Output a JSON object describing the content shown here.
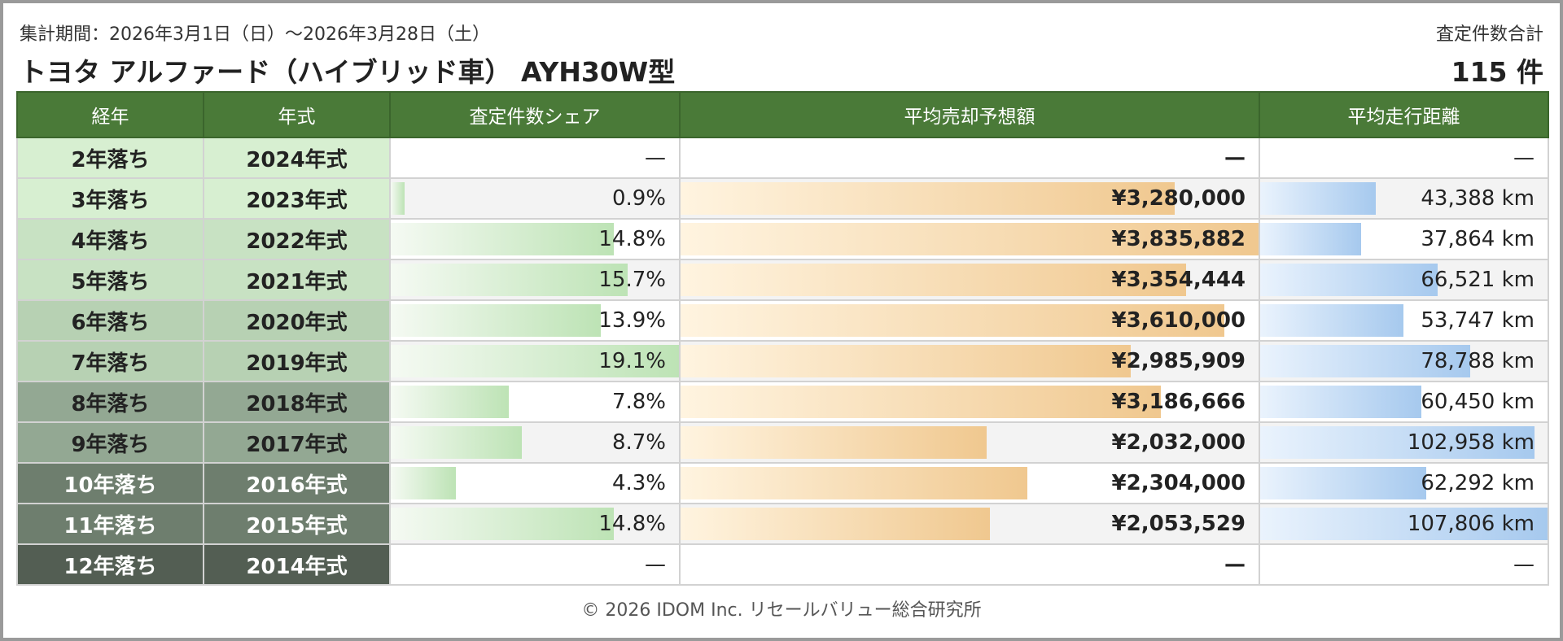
{
  "header": {
    "period": "集計期間：2026年3月1日（日）～2026年3月28日（土）",
    "title": "トヨタ アルファード（ハイブリッド車） AYH30W型",
    "total_label": "査定件数合計",
    "total_value": "115 件"
  },
  "columns": [
    "経年",
    "年式",
    "査定件数シェア",
    "平均売却予想額",
    "平均走行距離"
  ],
  "rows": [
    {
      "age": "2年落ち",
      "year": "2024年式",
      "share": "—",
      "share_pct": 0,
      "price": "—",
      "price_val": 0,
      "distance": "—",
      "distance_val": 0,
      "age_bg": "#d7efd1",
      "age_fg": "#222222"
    },
    {
      "age": "3年落ち",
      "year": "2023年式",
      "share": "0.9%",
      "share_pct": 0.9,
      "price": "¥3,280,000",
      "price_val": 3280000,
      "distance": "43,388 km",
      "distance_val": 43388,
      "age_bg": "#d7efd1",
      "age_fg": "#222222"
    },
    {
      "age": "4年落ち",
      "year": "2022年式",
      "share": "14.8%",
      "share_pct": 14.8,
      "price": "¥3,835,882",
      "price_val": 3835882,
      "distance": "37,864 km",
      "distance_val": 37864,
      "age_bg": "#c8e2c3",
      "age_fg": "#222222"
    },
    {
      "age": "5年落ち",
      "year": "2021年式",
      "share": "15.7%",
      "share_pct": 15.7,
      "price": "¥3,354,444",
      "price_val": 3354444,
      "distance": "66,521 km",
      "distance_val": 66521,
      "age_bg": "#c8e2c3",
      "age_fg": "#222222"
    },
    {
      "age": "6年落ち",
      "year": "2020年式",
      "share": "13.9%",
      "share_pct": 13.9,
      "price": "¥3,610,000",
      "price_val": 3610000,
      "distance": "53,747 km",
      "distance_val": 53747,
      "age_bg": "#b7d1b3",
      "age_fg": "#222222"
    },
    {
      "age": "7年落ち",
      "year": "2019年式",
      "share": "19.1%",
      "share_pct": 19.1,
      "price": "¥2,985,909",
      "price_val": 2985909,
      "distance": "78,788 km",
      "distance_val": 78788,
      "age_bg": "#b7d1b3",
      "age_fg": "#222222"
    },
    {
      "age": "8年落ち",
      "year": "2018年式",
      "share": "7.8%",
      "share_pct": 7.8,
      "price": "¥3,186,666",
      "price_val": 3186666,
      "distance": "60,450 km",
      "distance_val": 60450,
      "age_bg": "#93a893",
      "age_fg": "#222222"
    },
    {
      "age": "9年落ち",
      "year": "2017年式",
      "share": "8.7%",
      "share_pct": 8.7,
      "price": "¥2,032,000",
      "price_val": 2032000,
      "distance": "102,958 km",
      "distance_val": 102958,
      "age_bg": "#93a893",
      "age_fg": "#222222"
    },
    {
      "age": "10年落ち",
      "year": "2016年式",
      "share": "4.3%",
      "share_pct": 4.3,
      "price": "¥2,304,000",
      "price_val": 2304000,
      "distance": "62,292 km",
      "distance_val": 62292,
      "age_bg": "#6e7e6e",
      "age_fg": "#ffffff"
    },
    {
      "age": "11年落ち",
      "year": "2015年式",
      "share": "14.8%",
      "share_pct": 14.8,
      "price": "¥2,053,529",
      "price_val": 2053529,
      "distance": "107,806 km",
      "distance_val": 107806,
      "age_bg": "#6e7e6e",
      "age_fg": "#ffffff"
    },
    {
      "age": "12年落ち",
      "year": "2014年式",
      "share": "—",
      "share_pct": 0,
      "price": "—",
      "price_val": 0,
      "distance": "—",
      "distance_val": 0,
      "age_bg": "#535e53",
      "age_fg": "#ffffff"
    }
  ],
  "footer": "© 2026 IDOM Inc. リセールバリュー総合研究所"
}
